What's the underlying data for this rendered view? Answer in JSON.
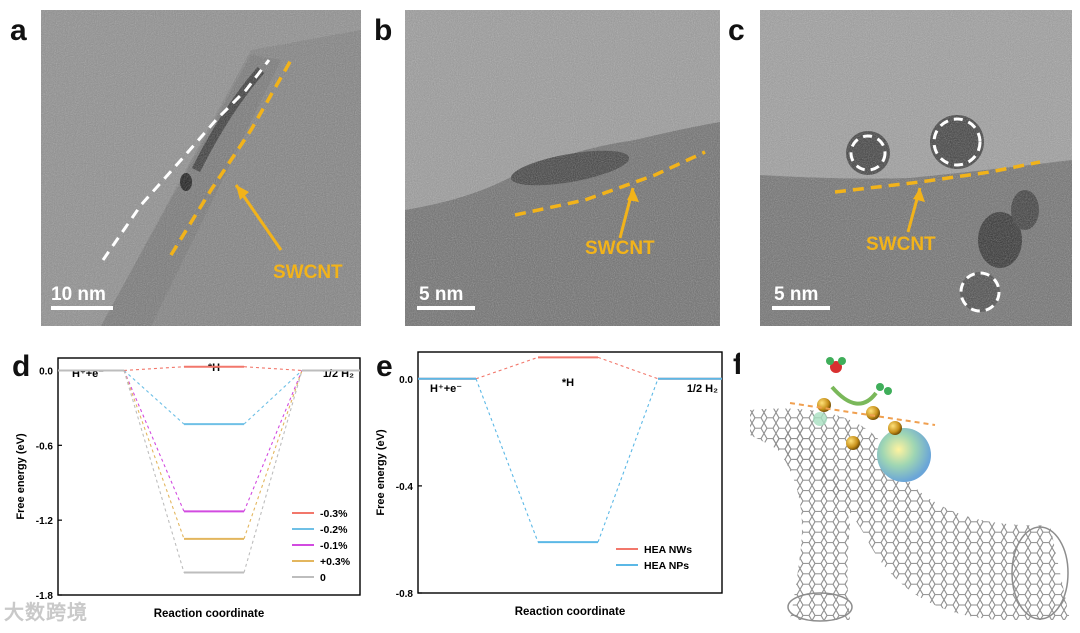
{
  "panels": {
    "a": {
      "letter": "a",
      "label": "SWCNT",
      "scale": "10 nm"
    },
    "b": {
      "letter": "b",
      "label": "SWCNT",
      "scale": "5 nm"
    },
    "c": {
      "letter": "c",
      "label": "SWCNT",
      "scale": "5 nm"
    },
    "d": {
      "letter": "d"
    },
    "e": {
      "letter": "e"
    },
    "f": {
      "letter": "f"
    }
  },
  "colors": {
    "swcnt": "#f2b31a",
    "dash_white": "#ffffff"
  },
  "watermark": "大数跨境",
  "chart_data": [
    {
      "type": "line",
      "title": "",
      "ylabel": "Free energy (eV)",
      "xlabel": "Reaction coordinate",
      "ylim": [
        -1.8,
        0.1
      ],
      "yticks": [
        "0.0",
        "-0.6",
        "-1.2",
        "-1.8"
      ],
      "ytick_values": [
        0.0,
        -0.6,
        -1.2,
        -1.8
      ],
      "states": [
        "H⁺+e⁻",
        "*H",
        "1/2 H₂"
      ],
      "series": [
        {
          "name": "-0.3%",
          "color": "#f2776b",
          "values": [
            0.0,
            0.03,
            0.0
          ]
        },
        {
          "name": "-0.2%",
          "color": "#6fc0e6",
          "values": [
            0.0,
            -0.43,
            0.0
          ]
        },
        {
          "name": "-0.1%",
          "color": "#d24be0",
          "values": [
            0.0,
            -1.13,
            0.0
          ]
        },
        {
          "name": "+0.3%",
          "color": "#e3b65e",
          "values": [
            0.0,
            -1.35,
            0.0
          ]
        },
        {
          "name": "0",
          "color": "#bdbdbd",
          "values": [
            0.0,
            -1.62,
            0.0
          ]
        }
      ]
    },
    {
      "type": "line",
      "title": "",
      "ylabel": "Free energy (eV)",
      "xlabel": "Reaction coordinate",
      "ylim": [
        -0.8,
        0.1
      ],
      "yticks": [
        "0.0",
        "-0.4",
        "-0.8"
      ],
      "ytick_values": [
        0.0,
        -0.4,
        -0.8
      ],
      "states": [
        "H⁺+e⁻",
        "*H",
        "1/2 H₂"
      ],
      "series": [
        {
          "name": "HEA NWs",
          "color": "#f2776b",
          "values": [
            0.0,
            0.08,
            0.0
          ]
        },
        {
          "name": "HEA NPs",
          "color": "#5bb8e6",
          "values": [
            0.0,
            -0.61,
            0.0
          ]
        }
      ]
    }
  ]
}
